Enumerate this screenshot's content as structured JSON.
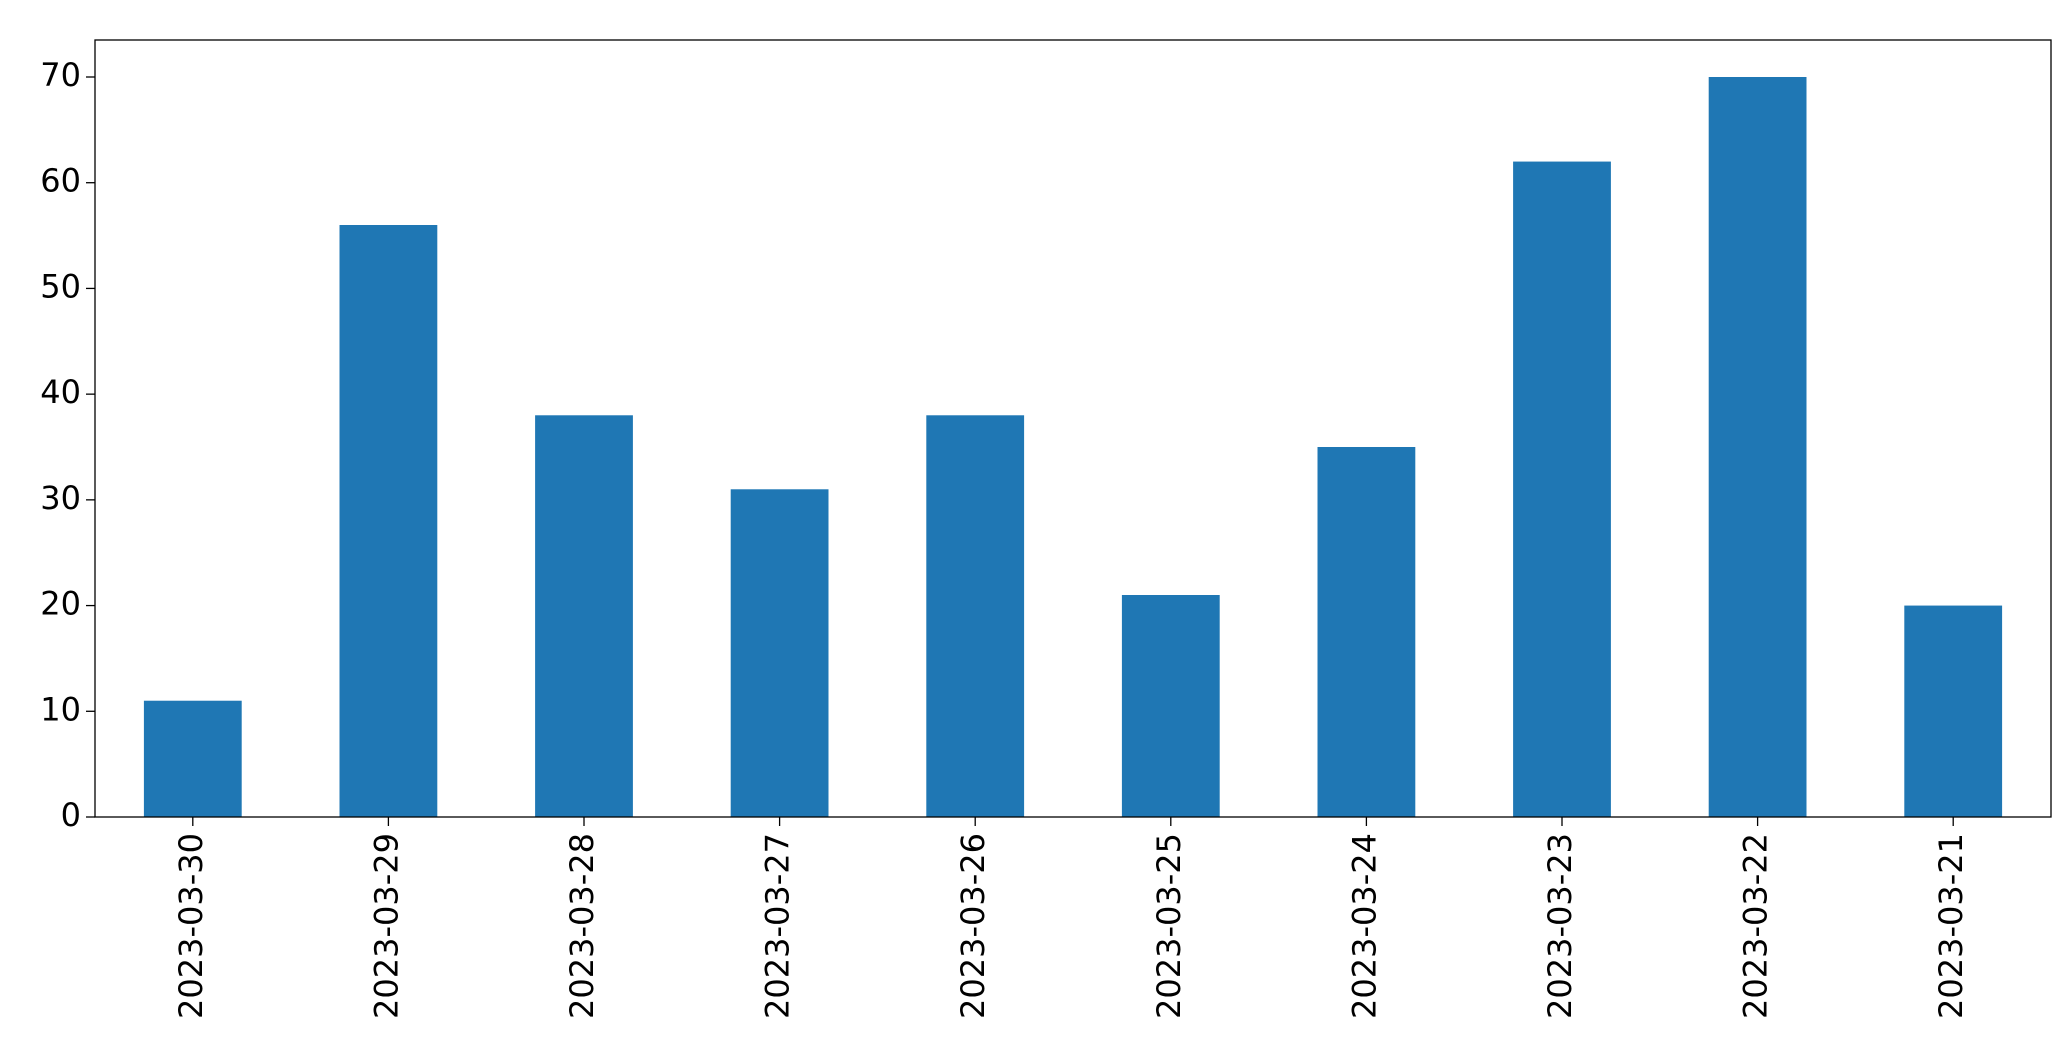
{
  "chart_data": {
    "type": "bar",
    "categories": [
      "2023-03-30",
      "2023-03-29",
      "2023-03-28",
      "2023-03-27",
      "2023-03-26",
      "2023-03-25",
      "2023-03-24",
      "2023-03-23",
      "2023-03-22",
      "2023-03-21"
    ],
    "values": [
      11,
      56,
      38,
      31,
      38,
      21,
      35,
      62,
      70,
      20
    ],
    "color": "#1f77b4",
    "ylim": [
      0,
      73.5
    ],
    "yticks": [
      0,
      10,
      20,
      30,
      40,
      50,
      60,
      70
    ],
    "grid": false
  }
}
